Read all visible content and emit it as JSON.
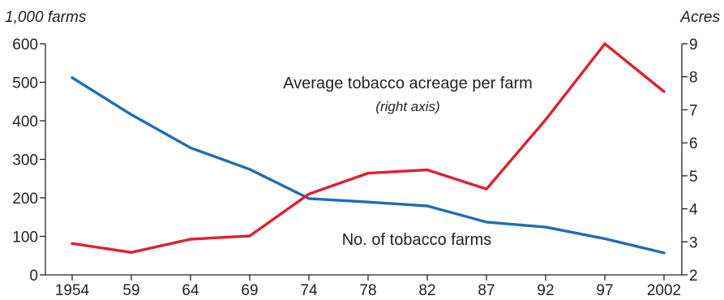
{
  "chart_data": {
    "type": "line",
    "x": [
      "1954",
      "59",
      "64",
      "69",
      "74",
      "78",
      "82",
      "87",
      "92",
      "97",
      "2002"
    ],
    "left_axis": {
      "unit": "1,000 farms",
      "ylim": [
        0,
        600
      ],
      "ticks": [
        "0",
        "100",
        "200",
        "300",
        "400",
        "500",
        "600"
      ]
    },
    "right_axis": {
      "unit": "Acres",
      "ylim": [
        2,
        9
      ],
      "ticks": [
        "2",
        "3",
        "4",
        "5",
        "6",
        "7",
        "8",
        "9"
      ]
    },
    "series": [
      {
        "name": "No. of tobacco farms",
        "axis": "left",
        "color": "#1f6db5",
        "values": [
          512,
          416,
          330,
          274,
          198,
          189,
          179,
          137,
          124,
          94,
          57
        ]
      },
      {
        "name": "Average tobacco acreage per farm",
        "axis": "right",
        "color": "#e0202e",
        "values": [
          2.95,
          2.68,
          3.08,
          3.18,
          4.45,
          5.08,
          5.18,
          4.6,
          6.7,
          9.0,
          7.55
        ]
      }
    ],
    "annotations": [
      {
        "text": "Average tobacco acreage per farm",
        "sub": "(right axis)"
      },
      {
        "text": "No. of tobacco farms"
      }
    ],
    "grid": false,
    "legend": "none"
  }
}
